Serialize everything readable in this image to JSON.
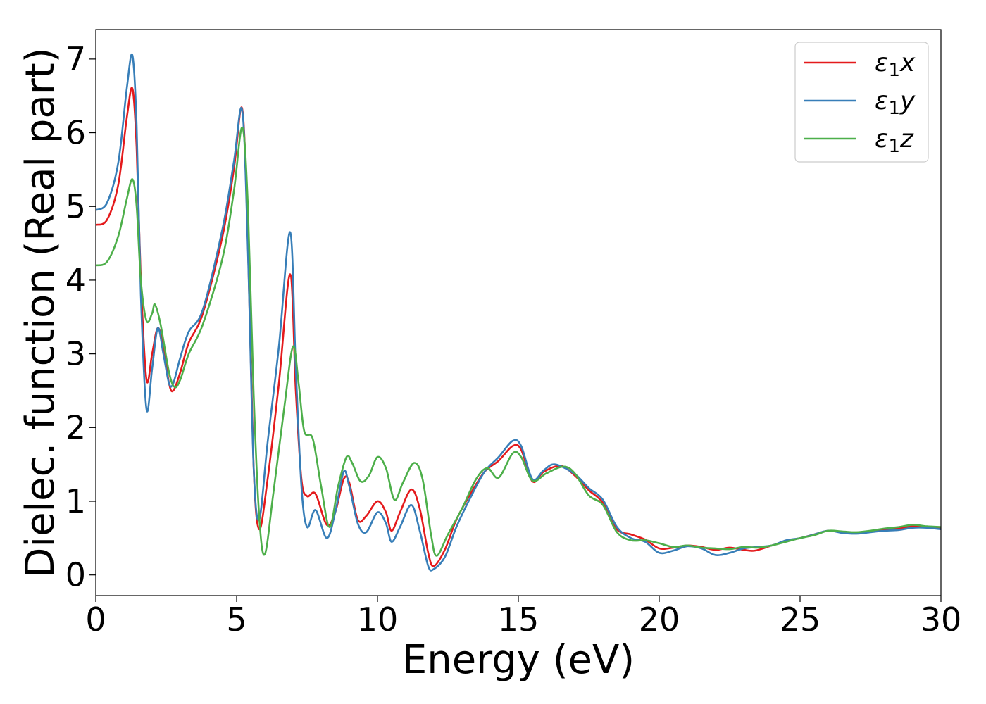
{
  "chart_data": {
    "type": "line",
    "title": "",
    "xlabel": "Energy (eV)",
    "ylabel": "Dielec. function (Real part)",
    "xlim": [
      0,
      30
    ],
    "ylim": [
      -0.28,
      7.4
    ],
    "xticks": [
      0,
      5,
      10,
      15,
      20,
      25,
      30
    ],
    "yticks": [
      0,
      1,
      2,
      3,
      4,
      5,
      6,
      7
    ],
    "grid": false,
    "legend_position": "top-right",
    "series": [
      {
        "name": "ε₁x",
        "legend_symbol": "ε",
        "legend_sub": "1",
        "legend_var": "x",
        "color": "#e41a1c",
        "points": [
          [
            0,
            4.75
          ],
          [
            0.4,
            4.82
          ],
          [
            0.8,
            5.3
          ],
          [
            1.1,
            6.2
          ],
          [
            1.3,
            6.6
          ],
          [
            1.45,
            5.8
          ],
          [
            1.6,
            4.0
          ],
          [
            1.8,
            2.65
          ],
          [
            2.0,
            3.0
          ],
          [
            2.2,
            3.35
          ],
          [
            2.4,
            3.1
          ],
          [
            2.6,
            2.6
          ],
          [
            2.75,
            2.5
          ],
          [
            3.0,
            2.75
          ],
          [
            3.3,
            3.15
          ],
          [
            3.8,
            3.55
          ],
          [
            4.5,
            4.6
          ],
          [
            4.9,
            5.5
          ],
          [
            5.2,
            6.32
          ],
          [
            5.4,
            4.5
          ],
          [
            5.6,
            1.5
          ],
          [
            5.8,
            0.62
          ],
          [
            6.1,
            1.3
          ],
          [
            6.5,
            2.6
          ],
          [
            6.9,
            4.08
          ],
          [
            7.1,
            2.5
          ],
          [
            7.3,
            1.3
          ],
          [
            7.5,
            1.07
          ],
          [
            7.8,
            1.1
          ],
          [
            8.2,
            0.68
          ],
          [
            8.5,
            0.85
          ],
          [
            8.8,
            1.3
          ],
          [
            9.0,
            1.25
          ],
          [
            9.3,
            0.75
          ],
          [
            9.6,
            0.8
          ],
          [
            10.0,
            1.0
          ],
          [
            10.3,
            0.85
          ],
          [
            10.5,
            0.6
          ],
          [
            10.8,
            0.85
          ],
          [
            11.2,
            1.16
          ],
          [
            11.5,
            0.9
          ],
          [
            11.8,
            0.3
          ],
          [
            12.0,
            0.12
          ],
          [
            12.4,
            0.35
          ],
          [
            12.8,
            0.75
          ],
          [
            13.3,
            1.1
          ],
          [
            13.8,
            1.4
          ],
          [
            14.3,
            1.55
          ],
          [
            14.8,
            1.75
          ],
          [
            15.1,
            1.7
          ],
          [
            15.5,
            1.27
          ],
          [
            15.9,
            1.4
          ],
          [
            16.5,
            1.48
          ],
          [
            17.0,
            1.35
          ],
          [
            17.5,
            1.15
          ],
          [
            18.0,
            0.98
          ],
          [
            18.5,
            0.62
          ],
          [
            19.0,
            0.55
          ],
          [
            19.5,
            0.48
          ],
          [
            20.0,
            0.36
          ],
          [
            20.5,
            0.37
          ],
          [
            21.0,
            0.4
          ],
          [
            21.5,
            0.38
          ],
          [
            22.0,
            0.34
          ],
          [
            22.5,
            0.37
          ],
          [
            23.0,
            0.34
          ],
          [
            23.4,
            0.33
          ],
          [
            24.0,
            0.4
          ],
          [
            24.5,
            0.46
          ],
          [
            25.0,
            0.5
          ],
          [
            25.5,
            0.55
          ],
          [
            26.0,
            0.6
          ],
          [
            26.5,
            0.58
          ],
          [
            27.0,
            0.57
          ],
          [
            27.5,
            0.59
          ],
          [
            28.0,
            0.62
          ],
          [
            28.5,
            0.63
          ],
          [
            29.0,
            0.66
          ],
          [
            29.5,
            0.65
          ],
          [
            30.0,
            0.64
          ]
        ]
      },
      {
        "name": "ε₁y",
        "legend_symbol": "ε",
        "legend_sub": "1",
        "legend_var": "y",
        "color": "#377eb8",
        "points": [
          [
            0,
            4.95
          ],
          [
            0.4,
            5.05
          ],
          [
            0.8,
            5.6
          ],
          [
            1.1,
            6.6
          ],
          [
            1.3,
            7.05
          ],
          [
            1.45,
            6.1
          ],
          [
            1.6,
            3.8
          ],
          [
            1.8,
            2.25
          ],
          [
            2.0,
            2.8
          ],
          [
            2.2,
            3.35
          ],
          [
            2.4,
            3.0
          ],
          [
            2.6,
            2.6
          ],
          [
            2.75,
            2.6
          ],
          [
            3.0,
            2.95
          ],
          [
            3.3,
            3.3
          ],
          [
            3.8,
            3.6
          ],
          [
            4.5,
            4.7
          ],
          [
            4.9,
            5.6
          ],
          [
            5.2,
            6.3
          ],
          [
            5.4,
            4.4
          ],
          [
            5.6,
            1.5
          ],
          [
            5.8,
            0.75
          ],
          [
            6.1,
            1.8
          ],
          [
            6.5,
            3.1
          ],
          [
            6.9,
            4.65
          ],
          [
            7.1,
            2.8
          ],
          [
            7.3,
            1.2
          ],
          [
            7.5,
            0.65
          ],
          [
            7.8,
            0.88
          ],
          [
            8.2,
            0.5
          ],
          [
            8.5,
            0.85
          ],
          [
            8.8,
            1.4
          ],
          [
            9.0,
            1.2
          ],
          [
            9.3,
            0.7
          ],
          [
            9.6,
            0.58
          ],
          [
            10.0,
            0.85
          ],
          [
            10.3,
            0.7
          ],
          [
            10.5,
            0.45
          ],
          [
            10.8,
            0.65
          ],
          [
            11.2,
            0.95
          ],
          [
            11.5,
            0.6
          ],
          [
            11.8,
            0.12
          ],
          [
            12.0,
            0.08
          ],
          [
            12.4,
            0.25
          ],
          [
            12.8,
            0.65
          ],
          [
            13.3,
            1.05
          ],
          [
            13.8,
            1.4
          ],
          [
            14.3,
            1.6
          ],
          [
            14.8,
            1.82
          ],
          [
            15.1,
            1.75
          ],
          [
            15.5,
            1.3
          ],
          [
            15.9,
            1.42
          ],
          [
            16.3,
            1.5
          ],
          [
            17.0,
            1.37
          ],
          [
            17.5,
            1.18
          ],
          [
            18.0,
            1.02
          ],
          [
            18.5,
            0.65
          ],
          [
            19.0,
            0.5
          ],
          [
            19.5,
            0.45
          ],
          [
            20.0,
            0.3
          ],
          [
            20.5,
            0.33
          ],
          [
            21.0,
            0.39
          ],
          [
            21.5,
            0.36
          ],
          [
            22.0,
            0.27
          ],
          [
            22.5,
            0.3
          ],
          [
            23.0,
            0.36
          ],
          [
            23.5,
            0.38
          ],
          [
            24.0,
            0.4
          ],
          [
            24.5,
            0.47
          ],
          [
            25.0,
            0.5
          ],
          [
            25.5,
            0.55
          ],
          [
            26.0,
            0.6
          ],
          [
            26.5,
            0.57
          ],
          [
            27.0,
            0.56
          ],
          [
            27.5,
            0.58
          ],
          [
            28.0,
            0.6
          ],
          [
            28.5,
            0.61
          ],
          [
            29.0,
            0.64
          ],
          [
            29.5,
            0.64
          ],
          [
            30.0,
            0.62
          ]
        ]
      },
      {
        "name": "ε₁z",
        "legend_symbol": "ε",
        "legend_sub": "1",
        "legend_var": "z",
        "color": "#4daf4a",
        "points": [
          [
            0,
            4.2
          ],
          [
            0.4,
            4.25
          ],
          [
            0.8,
            4.6
          ],
          [
            1.1,
            5.1
          ],
          [
            1.3,
            5.37
          ],
          [
            1.45,
            5.0
          ],
          [
            1.6,
            4.0
          ],
          [
            1.8,
            3.45
          ],
          [
            2.0,
            3.55
          ],
          [
            2.1,
            3.67
          ],
          [
            2.3,
            3.4
          ],
          [
            2.6,
            2.75
          ],
          [
            2.8,
            2.55
          ],
          [
            3.0,
            2.65
          ],
          [
            3.3,
            3.0
          ],
          [
            3.8,
            3.4
          ],
          [
            4.5,
            4.3
          ],
          [
            4.9,
            5.2
          ],
          [
            5.2,
            6.07
          ],
          [
            5.4,
            5.0
          ],
          [
            5.6,
            2.5
          ],
          [
            5.8,
            0.8
          ],
          [
            6.0,
            0.28
          ],
          [
            6.3,
            1.1
          ],
          [
            6.7,
            2.3
          ],
          [
            7.0,
            3.1
          ],
          [
            7.2,
            2.6
          ],
          [
            7.4,
            1.95
          ],
          [
            7.7,
            1.85
          ],
          [
            8.0,
            1.2
          ],
          [
            8.3,
            0.65
          ],
          [
            8.6,
            1.2
          ],
          [
            8.9,
            1.6
          ],
          [
            9.1,
            1.52
          ],
          [
            9.4,
            1.27
          ],
          [
            9.7,
            1.35
          ],
          [
            10.0,
            1.6
          ],
          [
            10.3,
            1.45
          ],
          [
            10.6,
            1.02
          ],
          [
            10.9,
            1.25
          ],
          [
            11.3,
            1.52
          ],
          [
            11.6,
            1.3
          ],
          [
            11.9,
            0.55
          ],
          [
            12.1,
            0.26
          ],
          [
            12.5,
            0.55
          ],
          [
            13.0,
            0.9
          ],
          [
            13.5,
            1.3
          ],
          [
            13.9,
            1.45
          ],
          [
            14.3,
            1.32
          ],
          [
            14.8,
            1.65
          ],
          [
            15.1,
            1.6
          ],
          [
            15.5,
            1.28
          ],
          [
            16.0,
            1.38
          ],
          [
            16.6,
            1.47
          ],
          [
            17.0,
            1.38
          ],
          [
            17.5,
            1.08
          ],
          [
            18.0,
            0.95
          ],
          [
            18.5,
            0.58
          ],
          [
            19.0,
            0.47
          ],
          [
            19.5,
            0.47
          ],
          [
            20.0,
            0.43
          ],
          [
            20.5,
            0.38
          ],
          [
            21.0,
            0.4
          ],
          [
            21.5,
            0.37
          ],
          [
            22.0,
            0.36
          ],
          [
            22.5,
            0.35
          ],
          [
            23.0,
            0.38
          ],
          [
            23.5,
            0.37
          ],
          [
            24.0,
            0.4
          ],
          [
            24.5,
            0.45
          ],
          [
            25.0,
            0.5
          ],
          [
            25.5,
            0.54
          ],
          [
            26.0,
            0.6
          ],
          [
            26.5,
            0.59
          ],
          [
            27.0,
            0.58
          ],
          [
            27.5,
            0.6
          ],
          [
            28.0,
            0.63
          ],
          [
            28.5,
            0.65
          ],
          [
            29.0,
            0.68
          ],
          [
            29.5,
            0.66
          ],
          [
            30.0,
            0.65
          ]
        ]
      }
    ]
  }
}
